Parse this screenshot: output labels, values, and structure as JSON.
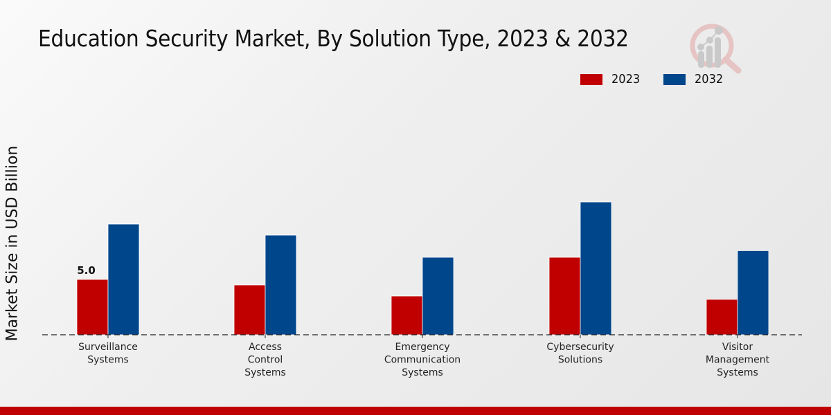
{
  "chart_data": {
    "type": "bar",
    "title": "Education Security Market, By Solution Type, 2023 & 2032",
    "xlabel": "",
    "ylabel": "Market Size in USD Billion",
    "ylim": [
      0,
      15
    ],
    "grid": false,
    "legend_position": "top-right",
    "categories": [
      [
        "Surveillance",
        "Systems"
      ],
      [
        "Access",
        "Control",
        "Systems"
      ],
      [
        "Emergency",
        "Communication",
        "Systems"
      ],
      [
        "Cybersecurity",
        "Solutions"
      ],
      [
        "Visitor",
        "Management",
        "Systems"
      ]
    ],
    "series": [
      {
        "name": "2023",
        "color": "#c00000",
        "values": [
          5.0,
          4.5,
          3.5,
          7.0,
          3.2
        ]
      },
      {
        "name": "2032",
        "color": "#00468b",
        "values": [
          10.0,
          9.0,
          7.0,
          12.0,
          7.6
        ]
      }
    ],
    "data_labels": [
      {
        "series": 0,
        "category": 0,
        "text": "5.0"
      }
    ]
  },
  "footer": {
    "accent_color": "#c00000"
  }
}
